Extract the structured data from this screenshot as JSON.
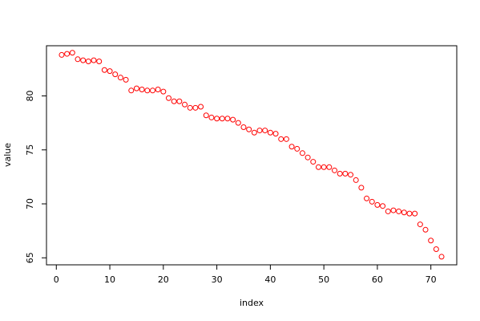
{
  "chart_data": {
    "type": "scatter",
    "xlabel": "index",
    "ylabel": "value",
    "color": "#ff0000",
    "x": [
      1,
      2,
      3,
      4,
      5,
      6,
      7,
      8,
      9,
      10,
      11,
      12,
      13,
      14,
      15,
      16,
      17,
      18,
      19,
      20,
      21,
      22,
      23,
      24,
      25,
      26,
      27,
      28,
      29,
      30,
      31,
      32,
      33,
      34,
      35,
      36,
      37,
      38,
      39,
      40,
      41,
      42,
      43,
      44,
      45,
      46,
      47,
      48,
      49,
      50,
      51,
      52,
      53,
      54,
      55,
      56,
      57,
      58,
      59,
      60,
      61,
      62,
      63,
      64,
      65,
      66,
      67,
      68,
      69,
      70,
      71,
      72
    ],
    "values": [
      83.8,
      83.9,
      84.0,
      83.4,
      83.3,
      83.2,
      83.3,
      83.2,
      82.4,
      82.3,
      82.0,
      81.7,
      81.5,
      80.5,
      80.7,
      80.6,
      80.5,
      80.5,
      80.6,
      80.4,
      79.8,
      79.5,
      79.5,
      79.2,
      78.9,
      78.9,
      79.0,
      78.2,
      78.0,
      77.9,
      77.9,
      77.9,
      77.8,
      77.5,
      77.1,
      76.9,
      76.6,
      76.8,
      76.8,
      76.6,
      76.5,
      76.0,
      76.0,
      75.3,
      75.1,
      74.7,
      74.3,
      73.9,
      73.4,
      73.4,
      73.4,
      73.1,
      72.8,
      72.8,
      72.7,
      72.2,
      71.5,
      70.5,
      70.2,
      69.9,
      69.8,
      69.3,
      69.4,
      69.3,
      69.2,
      69.1,
      69.1,
      68.1,
      67.6,
      66.6,
      65.8,
      65.1
    ],
    "xlim": [
      -1.84,
      74.84
    ],
    "ylim": [
      64.35,
      84.65
    ],
    "xticks": [
      0,
      10,
      20,
      30,
      40,
      50,
      60,
      70
    ],
    "yticks": [
      65,
      70,
      75,
      80
    ]
  }
}
